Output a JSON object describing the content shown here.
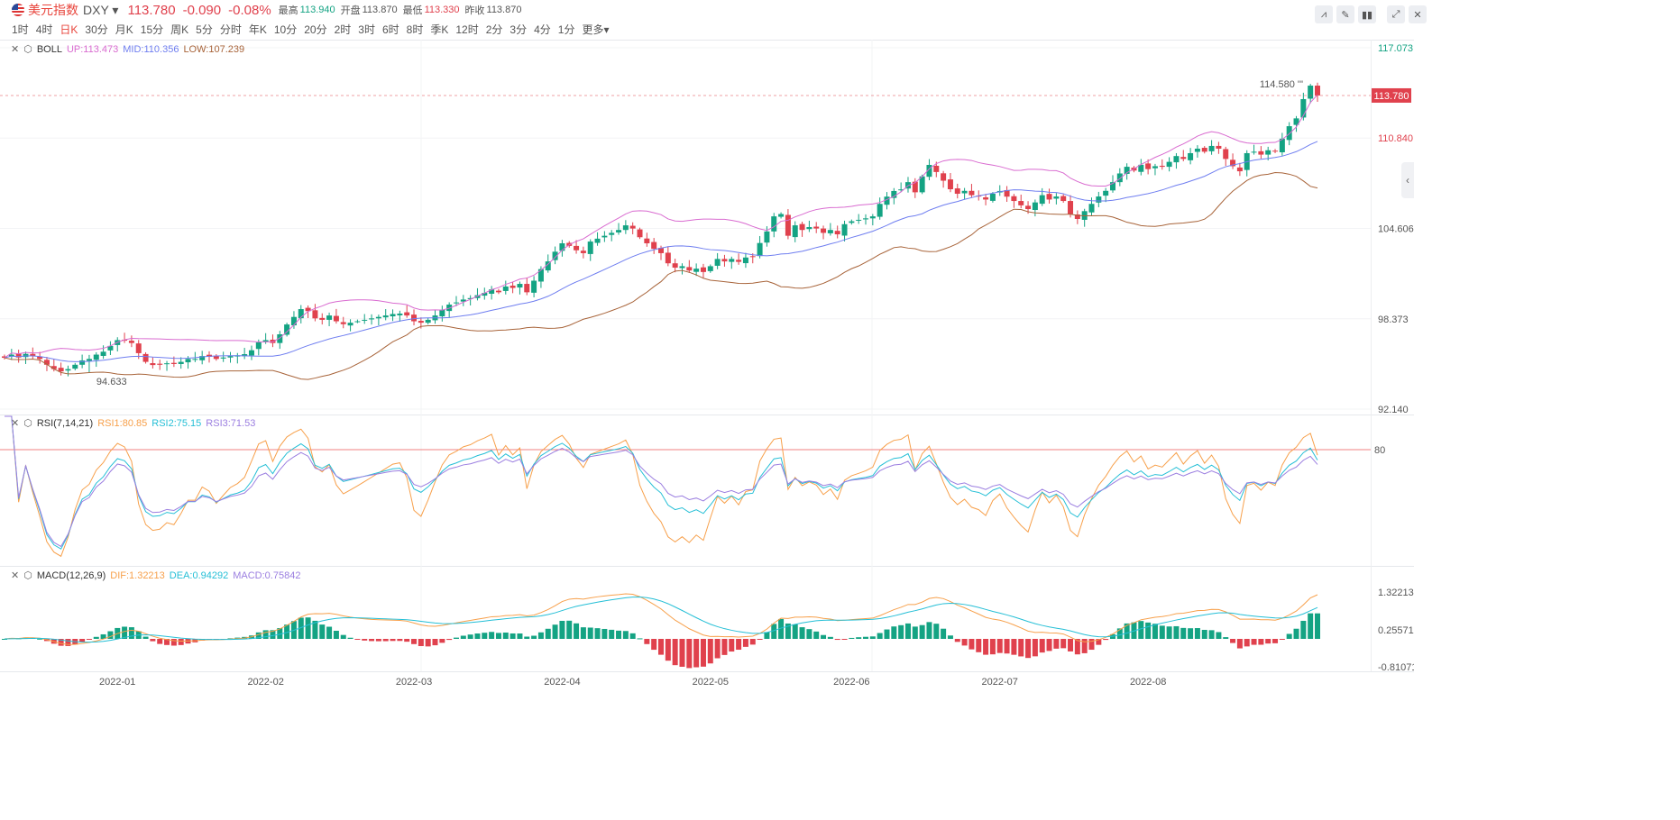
{
  "header": {
    "name": "美元指数",
    "symbol": "DXY",
    "price": "113.780",
    "change": "-0.090",
    "change_pct": "-0.08%",
    "high_label": "最高",
    "high": "113.940",
    "open_label": "开盘",
    "open": "113.870",
    "low_label": "最低",
    "low": "113.330",
    "prev_label": "昨收",
    "prev": "113.870"
  },
  "periods": [
    "1时",
    "4时",
    "日K",
    "30分",
    "月K",
    "15分",
    "周K",
    "5分",
    "分时",
    "年K",
    "10分",
    "20分",
    "2时",
    "3时",
    "6时",
    "8时",
    "季K",
    "12时",
    "2分",
    "3分",
    "4分",
    "1分",
    "更多▾"
  ],
  "active_period": "日K",
  "tools": [
    "indicator-icon",
    "draw-icon",
    "candle-type-icon",
    "fullscreen-icon",
    "close-icon"
  ],
  "boll": {
    "name": "BOLL",
    "up": "UP:113.473",
    "mid": "MID:110.356",
    "low": "LOW:107.239"
  },
  "rsi": {
    "name": "RSI(7,14,21)",
    "r1": "RSI1:80.85",
    "r2": "RSI2:75.15",
    "r3": "RSI3:71.53",
    "level": "80"
  },
  "macd": {
    "name": "MACD(12,26,9)",
    "dif": "DIF:1.32213",
    "dea": "DEA:0.94292",
    "macd": "MACD:0.75842"
  },
  "colors": {
    "up": "#14a383",
    "down": "#e0414d",
    "up_band": "#d96bd0",
    "mid_band": "#6f7ef0",
    "low_band": "#a8643a",
    "rsi1": "#f7a04b",
    "rsi2": "#25bfd6",
    "rsi3": "#9b7ee0",
    "dif": "#f7a04b",
    "dea": "#25bfd6"
  },
  "chart_data": {
    "type": "candlestick",
    "price_axis": {
      "ticks": [
        "117.073",
        "110.840",
        "104.606",
        "98.373",
        "92.140"
      ],
      "range": [
        92.14,
        117.073
      ]
    },
    "macd_axis": {
      "ticks": [
        "1.32213",
        "0.25571",
        "-0.81071"
      ]
    },
    "current_price": "113.780",
    "max_marker": "114.580",
    "min_marker": "94.633",
    "x_labels": [
      {
        "label": "2022-01",
        "index": 16
      },
      {
        "label": "2022-02",
        "index": 37
      },
      {
        "label": "2022-03",
        "index": 58
      },
      {
        "label": "2022-04",
        "index": 79
      },
      {
        "label": "2022-05",
        "index": 100
      },
      {
        "label": "2022-06",
        "index": 120
      },
      {
        "label": "2022-07",
        "index": 141
      },
      {
        "label": "2022-08",
        "index": 162
      }
    ],
    "closes": [
      95.68,
      95.9,
      95.7,
      95.95,
      95.8,
      95.6,
      95.2,
      94.9,
      94.74,
      94.9,
      95.2,
      95.5,
      95.6,
      95.9,
      96.1,
      96.5,
      96.9,
      96.86,
      96.7,
      96.0,
      95.4,
      95.18,
      95.2,
      95.3,
      95.25,
      95.4,
      95.6,
      95.6,
      95.8,
      95.75,
      95.6,
      95.7,
      95.8,
      95.85,
      95.93,
      96.2,
      96.74,
      96.9,
      96.7,
      97.3,
      97.98,
      98.5,
      99.04,
      98.9,
      98.4,
      98.3,
      98.6,
      98.2,
      98.0,
      98.1,
      98.2,
      98.3,
      98.4,
      98.5,
      98.6,
      98.7,
      98.73,
      98.6,
      98.2,
      98.1,
      98.3,
      98.6,
      99.0,
      99.35,
      99.5,
      99.7,
      99.8,
      100.0,
      100.16,
      100.4,
      100.2,
      100.6,
      100.5,
      100.78,
      100.2,
      101.0,
      101.8,
      102.33,
      103.0,
      103.58,
      103.4,
      103.1,
      102.9,
      103.7,
      103.9,
      104.1,
      104.3,
      104.5,
      104.82,
      104.6,
      104.0,
      103.58,
      103.2,
      102.9,
      102.2,
      101.9,
      102.0,
      101.7,
      101.83,
      101.6,
      102.0,
      102.5,
      102.33,
      102.5,
      102.3,
      102.6,
      102.64,
      103.6,
      104.4,
      105.44,
      105.6,
      104.1,
      104.82,
      104.5,
      104.7,
      104.6,
      104.3,
      104.5,
      104.2,
      104.9,
      105.1,
      105.2,
      105.3,
      105.44,
      106.3,
      106.8,
      107.19,
      107.3,
      107.8,
      107.1,
      108.2,
      108.99,
      108.5,
      107.9,
      107.31,
      107.0,
      107.2,
      106.9,
      106.81,
      106.6,
      107.0,
      107.19,
      106.8,
      106.5,
      106.2,
      105.94,
      106.4,
      106.9,
      106.6,
      106.81,
      106.5,
      105.6,
      105.26,
      105.8,
      106.3,
      106.81,
      107.2,
      107.8,
      108.4,
      108.86,
      108.6,
      109.0,
      108.7,
      108.9,
      108.86,
      109.2,
      109.6,
      109.4,
      109.8,
      110.11,
      109.9,
      110.3,
      110.11,
      109.4,
      108.9,
      108.55,
      109.8,
      109.9,
      109.7,
      110.0,
      109.92,
      110.8,
      111.66,
      112.2,
      113.53,
      114.46,
      113.78
    ]
  }
}
